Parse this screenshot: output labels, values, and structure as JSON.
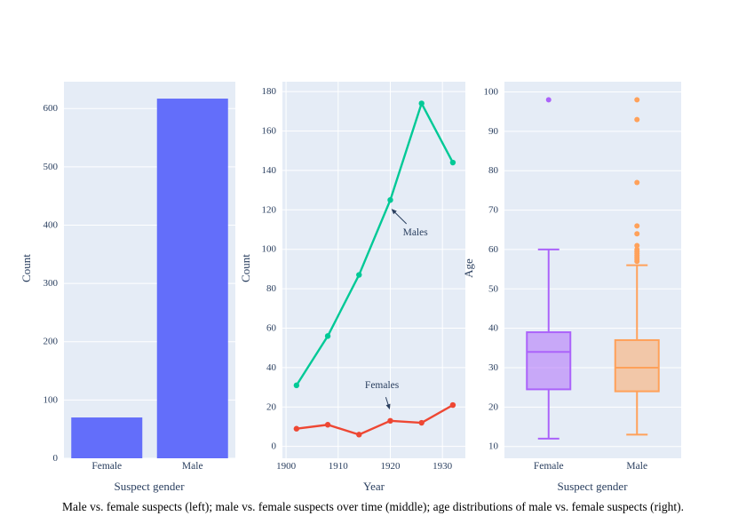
{
  "figure": {
    "caption": "Male vs. female suspects (left); male vs. female suspects over time (middle); age distributions of male vs. female suspects (right)."
  },
  "colors": {
    "plot_bg": "#E5ECF6",
    "grid": "#FFFFFF",
    "font": "#2A3F5F",
    "bar": "#636EFA",
    "males_line": "#00C996",
    "females_line": "#EE4733",
    "female_box": "#AB63FA",
    "male_box": "#FFA15A"
  },
  "chart_data": [
    {
      "type": "bar",
      "categories": [
        "Female",
        "Male"
      ],
      "values": [
        70,
        617
      ],
      "xlabel": "Suspect gender",
      "ylabel": "Count",
      "ylim": [
        0,
        646
      ],
      "yticks": [
        0,
        100,
        200,
        300,
        400,
        500,
        600
      ],
      "color": "#636EFA",
      "grid": true,
      "legend": "none"
    },
    {
      "type": "line",
      "x": [
        1902,
        1908,
        1914,
        1920,
        1926,
        1932
      ],
      "series": [
        {
          "name": "Males",
          "values": [
            31,
            56,
            87,
            125,
            174,
            144
          ],
          "color": "#00C996"
        },
        {
          "name": "Females",
          "values": [
            9,
            11,
            6,
            13,
            12,
            21
          ],
          "color": "#EE4733"
        }
      ],
      "xlabel": "Year",
      "ylabel": "Count",
      "xlim": [
        1899.3,
        1934.4
      ],
      "ylim": [
        -6,
        185
      ],
      "xticks": [
        1900,
        1910,
        1920,
        1930
      ],
      "yticks": [
        0,
        20,
        40,
        60,
        80,
        100,
        120,
        140,
        160,
        180
      ],
      "annotations": [
        {
          "text": "Males",
          "tx": 1924.8,
          "ty": 108.5,
          "x": 1920.2,
          "y": 120.5
        },
        {
          "text": "Females",
          "tx": 1918.4,
          "ty": 31,
          "x": 1919.9,
          "y": 18.7
        }
      ],
      "grid": true,
      "legend": "none"
    },
    {
      "type": "box",
      "categories": [
        "Female",
        "Male"
      ],
      "series": [
        {
          "name": "Female",
          "min": 12,
          "q1": 24.5,
          "median": 34,
          "q3": 39,
          "max": 60,
          "outliers": [
            98
          ],
          "color": "#AB63FA"
        },
        {
          "name": "Male",
          "min": 13,
          "q1": 24,
          "median": 30,
          "q3": 37,
          "max": 56,
          "outliers": [
            57,
            57.5,
            58,
            58.5,
            59,
            59.5,
            60,
            61,
            64,
            66,
            77,
            93,
            98
          ],
          "color": "#FFA15A"
        }
      ],
      "xlabel": "Suspect gender",
      "ylabel": "Age",
      "ylim": [
        7,
        102.6
      ],
      "yticks": [
        10,
        20,
        30,
        40,
        50,
        60,
        70,
        80,
        90,
        100
      ],
      "grid": true,
      "legend": "none"
    }
  ]
}
